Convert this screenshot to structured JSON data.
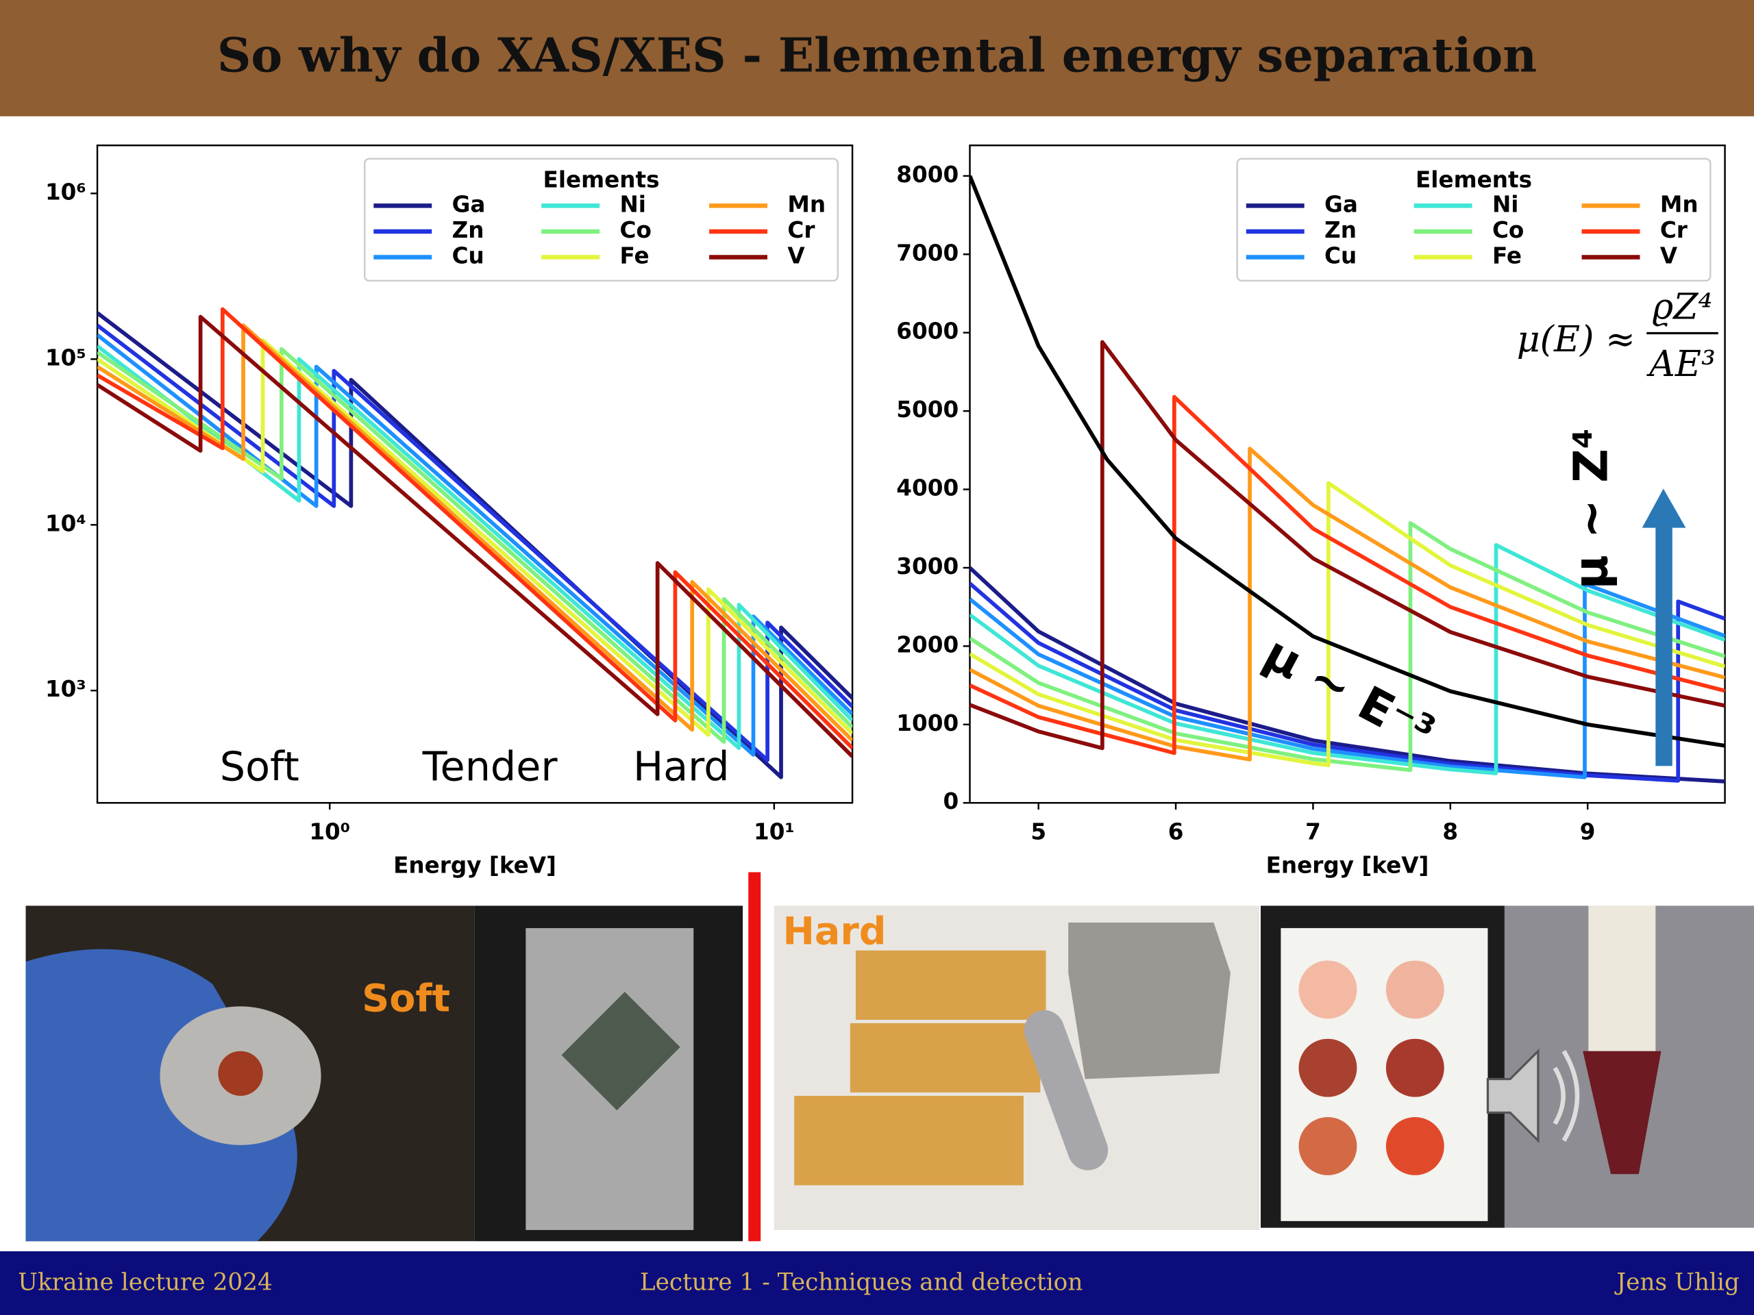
{
  "slide": {
    "title": "So why do XAS/XES - Elemental energy separation",
    "photo_labels": [
      "Soft",
      "Hard"
    ],
    "footer": {
      "left": "Ukraine lecture 2024",
      "center": "Lecture 1 - Techniques and detection",
      "right": "Jens Uhlig"
    }
  },
  "chart_data": [
    {
      "type": "line",
      "xlabel": "Energy [keV]",
      "xscale": "log",
      "yscale": "log",
      "xlim": [
        0.3,
        15
      ],
      "ylim": [
        210,
        1950000
      ],
      "xticks": [
        {
          "value": 1,
          "label": "10⁰"
        },
        {
          "value": 10,
          "label": "10¹"
        }
      ],
      "yticks": [
        {
          "value": 1000,
          "label": "10³"
        },
        {
          "value": 10000,
          "label": "10⁴"
        },
        {
          "value": 100000,
          "label": "10⁵"
        },
        {
          "value": 1000000,
          "label": "10⁶"
        }
      ],
      "legend": {
        "title": "Elements",
        "loc": "upper right"
      },
      "annotations": [
        "Soft",
        "Tender",
        "Hard"
      ],
      "series": [
        {
          "name": "Ga",
          "color": "#1c1c8a",
          "x": [
            0.3,
            1.117,
            1.117,
            10.367,
            10.367,
            15
          ],
          "values": [
            190000,
            13000,
            75000,
            300,
            2400,
            900
          ]
        },
        {
          "name": "Zn",
          "color": "#2233e0",
          "x": [
            0.3,
            1.022,
            1.022,
            9.659,
            9.659,
            15
          ],
          "values": [
            160000,
            13000,
            85000,
            380,
            2570,
            800
          ]
        },
        {
          "name": "Cu",
          "color": "#1e90ff",
          "x": [
            0.3,
            0.933,
            0.933,
            8.979,
            8.979,
            15
          ],
          "values": [
            140000,
            13000,
            90000,
            410,
            2800,
            720
          ]
        },
        {
          "name": "Ni",
          "color": "#3fe6d6",
          "x": [
            0.3,
            0.853,
            0.853,
            8.333,
            8.333,
            15
          ],
          "values": [
            120000,
            14000,
            100000,
            450,
            3290,
            660
          ]
        },
        {
          "name": "Co",
          "color": "#7ff07f",
          "x": [
            0.3,
            0.779,
            0.779,
            7.709,
            7.709,
            15
          ],
          "values": [
            110000,
            19000,
            115000,
            490,
            3570,
            600
          ]
        },
        {
          "name": "Fe",
          "color": "#e2f53c",
          "x": [
            0.3,
            0.707,
            0.707,
            7.112,
            7.112,
            15
          ],
          "values": [
            100000,
            21000,
            130000,
            540,
            4080,
            550
          ]
        },
        {
          "name": "Mn",
          "color": "#ff9a1a",
          "x": [
            0.3,
            0.639,
            0.639,
            6.539,
            6.539,
            15
          ],
          "values": [
            90000,
            25000,
            160000,
            580,
            4520,
            500
          ]
        },
        {
          "name": "Cr",
          "color": "#ff3412",
          "x": [
            0.3,
            0.574,
            0.574,
            5.989,
            5.989,
            15
          ],
          "values": [
            80000,
            29000,
            200000,
            660,
            5180,
            450
          ]
        },
        {
          "name": "V",
          "color": "#8b0a0a",
          "x": [
            0.3,
            0.512,
            0.512,
            5.465,
            5.465,
            15
          ],
          "values": [
            70000,
            28000,
            180000,
            720,
            5880,
            400
          ]
        }
      ]
    },
    {
      "type": "line",
      "xlabel": "Energy [keV]",
      "xlim": [
        4.5,
        10
      ],
      "ylim": [
        0,
        8390
      ],
      "xticks": [
        5,
        6,
        7,
        8,
        9
      ],
      "yticks": [
        0,
        1000,
        2000,
        3000,
        4000,
        5000,
        6000,
        7000,
        8000
      ],
      "legend": {
        "title": "Elements",
        "loc": "upper right"
      },
      "annotations": [
        "μ ~ E⁻³",
        "μ ~ Z⁴"
      ],
      "formula": {
        "lhs": "μ(E) ≈",
        "numerator": "ϱZ⁴",
        "denominator": "AE³"
      },
      "reference_curve": {
        "color": "#000000",
        "x": [
          4.5,
          5,
          5.5,
          6,
          7,
          8,
          9,
          10
        ],
        "values": [
          8000,
          5830,
          4380,
          3375,
          2125,
          1424,
          1000,
          729
        ]
      },
      "series": [
        {
          "name": "Ga",
          "color": "#1c1c8a",
          "x": [
            4.5,
            5,
            6,
            7,
            8,
            9,
            10
          ],
          "values": [
            3000,
            2187,
            1266,
            797,
            534,
            375,
            273
          ]
        },
        {
          "name": "Zn",
          "color": "#2233e0",
          "x": [
            4.5,
            5,
            6,
            7,
            8,
            9,
            9.659,
            9.659,
            10
          ],
          "values": [
            2800,
            2041,
            1181,
            744,
            498,
            350,
            283,
            2570,
            2350
          ]
        },
        {
          "name": "Cu",
          "color": "#1e90ff",
          "x": [
            4.5,
            5,
            6,
            7,
            8,
            8.979,
            8.979,
            9,
            10
          ],
          "values": [
            2600,
            1895,
            1097,
            691,
            463,
            327,
            2800,
            2780,
            2130
          ]
        },
        {
          "name": "Ni",
          "color": "#3fe6d6",
          "x": [
            4.5,
            5,
            6,
            7,
            8,
            8.333,
            8.333,
            9,
            10
          ],
          "values": [
            2400,
            1750,
            1013,
            638,
            427,
            378,
            3290,
            2710,
            2080
          ]
        },
        {
          "name": "Co",
          "color": "#7ff07f",
          "x": [
            4.5,
            5,
            6,
            7,
            7.709,
            7.709,
            8,
            9,
            10
          ],
          "values": [
            2100,
            1531,
            886,
            558,
            418,
            3570,
            3240,
            2430,
            1870
          ]
        },
        {
          "name": "Fe",
          "color": "#e2f53c",
          "x": [
            4.5,
            5,
            6,
            7,
            7.112,
            7.112,
            8,
            9,
            10
          ],
          "values": [
            1900,
            1385,
            802,
            505,
            481,
            4080,
            3030,
            2270,
            1740
          ]
        },
        {
          "name": "Mn",
          "color": "#ff9a1a",
          "x": [
            4.5,
            5,
            6,
            6.539,
            6.539,
            7,
            8,
            9,
            10
          ],
          "values": [
            1700,
            1239,
            717,
            554,
            4520,
            3800,
            2750,
            2060,
            1600
          ]
        },
        {
          "name": "Cr",
          "color": "#ff3412",
          "x": [
            4.5,
            5,
            5.989,
            5.989,
            7,
            8,
            9,
            10
          ],
          "values": [
            1500,
            1094,
            636,
            5180,
            3500,
            2500,
            1880,
            1430
          ]
        },
        {
          "name": "V",
          "color": "#8b0a0a",
          "x": [
            4.5,
            5,
            5.465,
            5.465,
            6,
            7,
            8,
            9,
            10
          ],
          "values": [
            1250,
            911,
            698,
            5880,
            4630,
            3120,
            2180,
            1610,
            1240
          ]
        }
      ]
    }
  ]
}
